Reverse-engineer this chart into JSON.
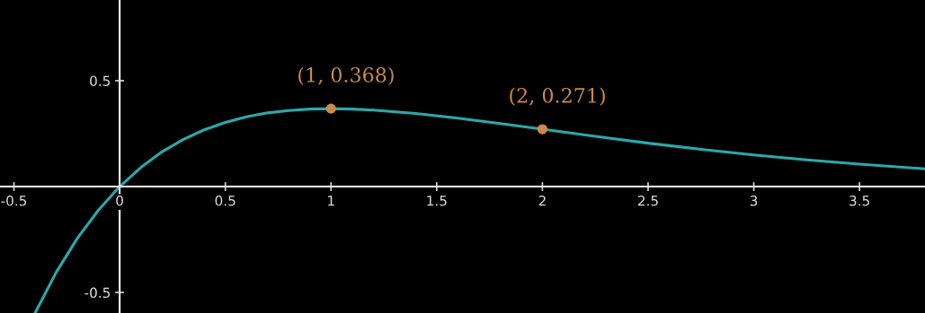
{
  "chart_data": {
    "type": "line",
    "series": [
      {
        "color": "#2ba8ab",
        "x": [
          -0.4,
          -0.3,
          -0.2,
          -0.1,
          0,
          0.1,
          0.2,
          0.3,
          0.4,
          0.5,
          0.6,
          0.7,
          0.8,
          0.9,
          1.0,
          1.1,
          1.2,
          1.4,
          1.6,
          1.8,
          2.0,
          2.25,
          2.5,
          2.75,
          3.0,
          3.25,
          3.5,
          3.81
        ],
        "values": [
          -0.597,
          -0.405,
          -0.244,
          -0.111,
          0,
          0.09,
          0.164,
          0.222,
          0.268,
          0.303,
          0.329,
          0.348,
          0.359,
          0.366,
          0.368,
          0.366,
          0.361,
          0.345,
          0.323,
          0.298,
          0.271,
          0.237,
          0.205,
          0.176,
          0.149,
          0.126,
          0.106,
          0.084
        ]
      },
      {
        "type": "scatter",
        "color": "#c98a4b",
        "x": [
          1,
          2
        ],
        "values": [
          0.368,
          0.271
        ]
      }
    ],
    "annotations": [
      {
        "text": "(1, 0.368)",
        "x": 1,
        "y": 0.368
      },
      {
        "text": "(2, 0.271)",
        "x": 2,
        "y": 0.271
      }
    ],
    "xlim": [
      -0.566,
      3.81
    ],
    "ylim": [
      -0.597,
      0.881
    ],
    "xticks": [
      -0.5,
      0,
      0.5,
      1,
      1.5,
      2,
      2.5,
      3,
      3.5
    ],
    "yticks": [
      -0.5,
      0.5
    ],
    "grid": false,
    "legend": false,
    "line_style": "solid"
  }
}
